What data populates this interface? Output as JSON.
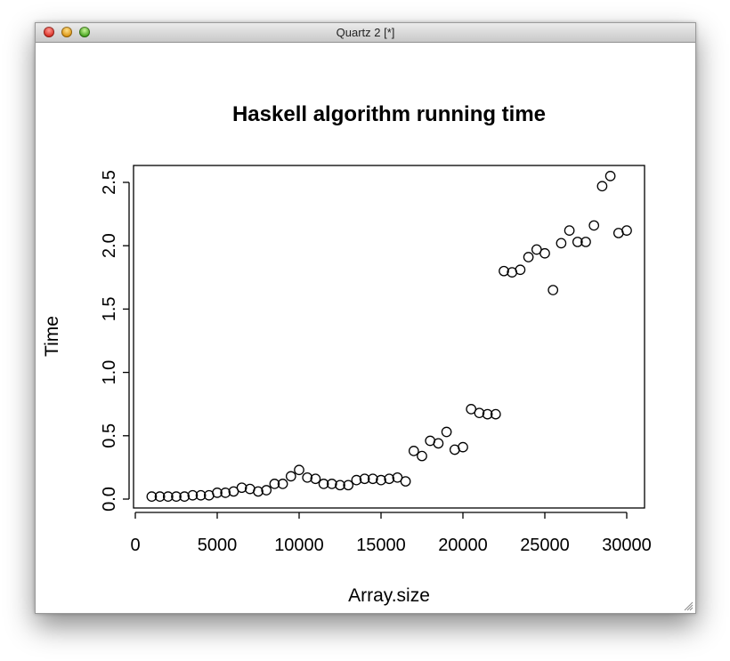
{
  "window": {
    "title": "Quartz 2 [*]"
  },
  "chart_data": {
    "type": "scatter",
    "title": "Haskell algorithm running time",
    "xlabel": "Array.size",
    "ylabel": "Time",
    "xlim": [
      0,
      31000
    ],
    "ylim": [
      0,
      2.65
    ],
    "xticks": [
      0,
      5000,
      10000,
      15000,
      20000,
      25000,
      30000
    ],
    "xtick_labels": [
      "0",
      "5000",
      "10000",
      "15000",
      "20000",
      "25000",
      "30000"
    ],
    "yticks": [
      0,
      0.5,
      1.0,
      1.5,
      2.0,
      2.5
    ],
    "ytick_labels": [
      "0.0",
      "0.5",
      "1.0",
      "1.5",
      "2.0",
      "2.5"
    ],
    "grid": false,
    "legend": "none",
    "marker": "open-circle",
    "x": [
      1000,
      1500,
      2000,
      2500,
      3000,
      3500,
      4000,
      4500,
      5000,
      5500,
      6000,
      6500,
      7000,
      7500,
      8000,
      8500,
      9000,
      9500,
      10000,
      10500,
      11000,
      11500,
      12000,
      12500,
      13000,
      13500,
      14000,
      14500,
      15000,
      15500,
      16000,
      16500,
      17000,
      17500,
      18000,
      18500,
      19000,
      19500,
      20000,
      20500,
      21000,
      21500,
      22000,
      22500,
      23000,
      23500,
      24000,
      24500,
      25000,
      25500,
      26000,
      26500,
      27000,
      27500,
      28000,
      28500,
      29000,
      29500,
      30000
    ],
    "y": [
      0.02,
      0.02,
      0.02,
      0.02,
      0.02,
      0.03,
      0.03,
      0.03,
      0.05,
      0.05,
      0.06,
      0.09,
      0.08,
      0.06,
      0.07,
      0.12,
      0.12,
      0.18,
      0.23,
      0.17,
      0.16,
      0.12,
      0.12,
      0.11,
      0.11,
      0.15,
      0.16,
      0.16,
      0.15,
      0.16,
      0.17,
      0.14,
      0.38,
      0.34,
      0.46,
      0.44,
      0.53,
      0.39,
      0.41,
      0.71,
      0.68,
      0.67,
      0.67,
      1.8,
      1.79,
      1.81,
      1.91,
      1.97,
      1.94,
      1.65,
      2.02,
      2.12,
      2.03,
      2.03,
      2.16,
      2.47,
      2.55,
      2.1,
      2.12
    ]
  }
}
